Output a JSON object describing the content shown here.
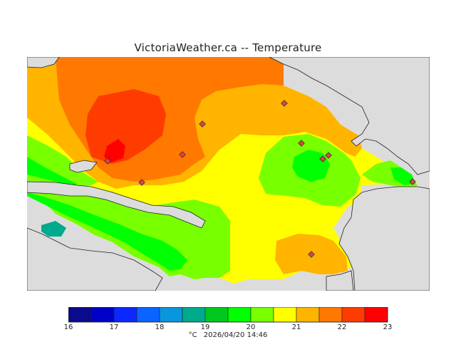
{
  "title": "VictoriaWeather.ca -- Temperature",
  "legend": {
    "ticks": [
      "16",
      "17",
      "18",
      "19",
      "20",
      "21",
      "22",
      "23"
    ],
    "colors": [
      "#0a0a8c",
      "#0000c8",
      "#0a28ff",
      "#0a64ff",
      "#0a96dc",
      "#00aa8c",
      "#00c81e",
      "#00ff00",
      "#78ff00",
      "#ffff00",
      "#ffb400",
      "#ff7800",
      "#ff3c00",
      "#ff0000"
    ]
  },
  "footer": {
    "unit": "°C",
    "datetime": "2026/04/20 14:46"
  },
  "colors": {
    "land_outside": "#dcdcdc",
    "coast": "#222222"
  },
  "stations": 10
}
